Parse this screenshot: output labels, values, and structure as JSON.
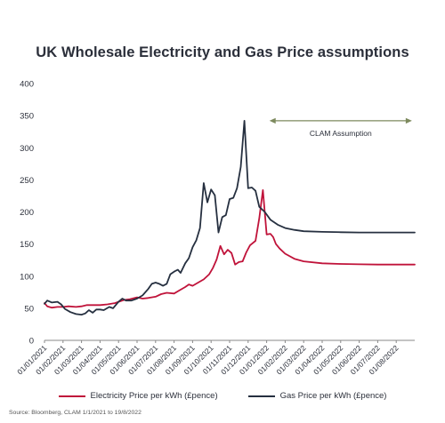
{
  "chart_data": {
    "type": "line",
    "title": "UK Wholesale Electricity and Gas Price assumptions",
    "source": "Source: Bloomberg, CLAM 1/1/2021 to 19/8/2022",
    "ylim": [
      0,
      400
    ],
    "yticks": [
      0,
      50,
      100,
      150,
      200,
      250,
      300,
      350,
      400
    ],
    "xlim": [
      0,
      20
    ],
    "xtick_labels": [
      "01/01/2021",
      "01/02/2021",
      "01/03/2021",
      "01/04/2021",
      "01/05/2021",
      "01/06/2021",
      "01/07/2021",
      "01/08/2021",
      "01/09/2021",
      "01/10/2021",
      "01/11/2021",
      "01/12/2021",
      "01/01/2022",
      "01/02/2022",
      "01/03/2022",
      "01/04/2022",
      "01/05/2022",
      "01/06/2022",
      "01/07/2022",
      "01/08/2022"
    ],
    "annotation": {
      "label": "CLAM Assumption",
      "x_start": 12.15,
      "x_end": 19.85,
      "y": 342
    },
    "colors": {
      "electricity": "#c0133a",
      "gas": "#263040",
      "annotation": "#7d8a5e",
      "axis": "#888888"
    },
    "series": [
      {
        "name": "Electricity Price per kWh (£pence)",
        "color": "#c0133a",
        "points": [
          [
            0,
            58
          ],
          [
            0.15,
            53
          ],
          [
            0.4,
            51
          ],
          [
            0.7,
            52
          ],
          [
            1,
            52
          ],
          [
            1.3,
            53
          ],
          [
            1.7,
            52
          ],
          [
            2,
            53
          ],
          [
            2.3,
            55
          ],
          [
            2.6,
            55
          ],
          [
            3,
            55
          ],
          [
            3.4,
            56
          ],
          [
            3.8,
            58
          ],
          [
            4,
            60
          ],
          [
            4.3,
            63
          ],
          [
            4.6,
            64
          ],
          [
            5,
            67
          ],
          [
            5.3,
            65
          ],
          [
            5.6,
            66
          ],
          [
            6,
            68
          ],
          [
            6.3,
            72
          ],
          [
            6.6,
            74
          ],
          [
            7,
            73
          ],
          [
            7.3,
            78
          ],
          [
            7.6,
            83
          ],
          [
            7.8,
            87
          ],
          [
            8,
            85
          ],
          [
            8.3,
            90
          ],
          [
            8.6,
            95
          ],
          [
            8.9,
            103
          ],
          [
            9.1,
            113
          ],
          [
            9.3,
            126
          ],
          [
            9.5,
            147
          ],
          [
            9.7,
            134
          ],
          [
            9.9,
            141
          ],
          [
            10.1,
            136
          ],
          [
            10.3,
            118
          ],
          [
            10.5,
            122
          ],
          [
            10.7,
            123
          ],
          [
            10.9,
            137
          ],
          [
            11.1,
            148
          ],
          [
            11.4,
            155
          ],
          [
            11.6,
            190
          ],
          [
            11.8,
            234
          ],
          [
            12,
            165
          ],
          [
            12.2,
            166
          ],
          [
            12.35,
            161
          ],
          [
            12.5,
            150
          ],
          [
            12.7,
            143
          ],
          [
            13,
            135
          ],
          [
            13.5,
            127
          ],
          [
            14,
            123
          ],
          [
            15,
            120
          ],
          [
            16,
            119
          ],
          [
            17,
            118.5
          ],
          [
            18,
            118
          ],
          [
            19,
            118
          ],
          [
            20,
            118
          ]
        ]
      },
      {
        "name": "Gas Price per kWh (£pence)",
        "color": "#263040",
        "points": [
          [
            0,
            57
          ],
          [
            0.15,
            62
          ],
          [
            0.4,
            59
          ],
          [
            0.7,
            60
          ],
          [
            0.9,
            56
          ],
          [
            1.1,
            49
          ],
          [
            1.4,
            44
          ],
          [
            1.7,
            41
          ],
          [
            2,
            40
          ],
          [
            2.2,
            42
          ],
          [
            2.4,
            47
          ],
          [
            2.6,
            43
          ],
          [
            2.8,
            48
          ],
          [
            3,
            48
          ],
          [
            3.2,
            47
          ],
          [
            3.5,
            52
          ],
          [
            3.7,
            50
          ],
          [
            4,
            60
          ],
          [
            4.2,
            65
          ],
          [
            4.4,
            62
          ],
          [
            4.7,
            62
          ],
          [
            5,
            65
          ],
          [
            5.3,
            70
          ],
          [
            5.6,
            80
          ],
          [
            5.8,
            88
          ],
          [
            6,
            90
          ],
          [
            6.2,
            88
          ],
          [
            6.4,
            85
          ],
          [
            6.6,
            88
          ],
          [
            6.8,
            103
          ],
          [
            7,
            107
          ],
          [
            7.2,
            110
          ],
          [
            7.35,
            105
          ],
          [
            7.6,
            120
          ],
          [
            7.8,
            128
          ],
          [
            8,
            145
          ],
          [
            8.2,
            156
          ],
          [
            8.4,
            175
          ],
          [
            8.6,
            245
          ],
          [
            8.8,
            215
          ],
          [
            9,
            235
          ],
          [
            9.2,
            226
          ],
          [
            9.4,
            168
          ],
          [
            9.6,
            192
          ],
          [
            9.8,
            195
          ],
          [
            10,
            220
          ],
          [
            10.2,
            222
          ],
          [
            10.4,
            237
          ],
          [
            10.6,
            270
          ],
          [
            10.8,
            342
          ],
          [
            11,
            237
          ],
          [
            11.2,
            238
          ],
          [
            11.4,
            233
          ],
          [
            11.6,
            208
          ],
          [
            11.9,
            200
          ],
          [
            12.2,
            188
          ],
          [
            12.6,
            180
          ],
          [
            13,
            175
          ],
          [
            13.5,
            172
          ],
          [
            14,
            170
          ],
          [
            15,
            169
          ],
          [
            16,
            168.5
          ],
          [
            17,
            168
          ],
          [
            18,
            168
          ],
          [
            19,
            168
          ],
          [
            20,
            168
          ]
        ]
      }
    ]
  }
}
